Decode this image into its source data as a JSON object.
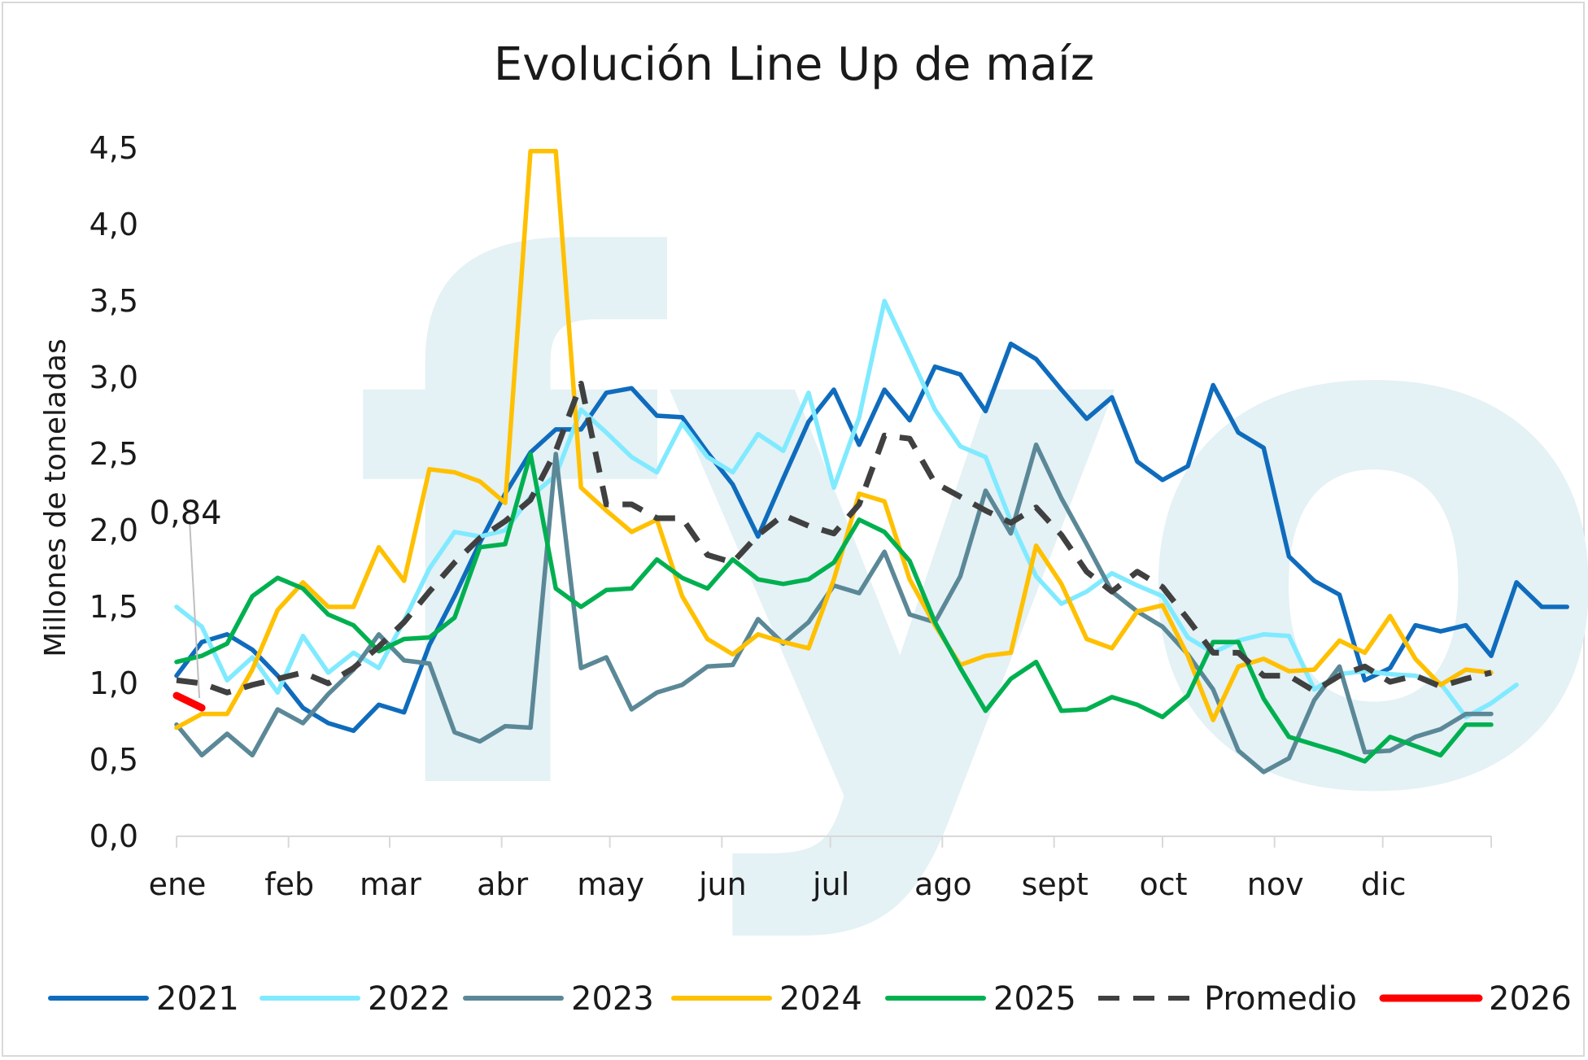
{
  "chart_data": {
    "type": "line",
    "title": "Evolución Line Up de maíz",
    "xlabel": "",
    "ylabel": "Millones de toneladas",
    "ylim": [
      0,
      4.5
    ],
    "yticks": [
      "0,0",
      "0,5",
      "1,0",
      "1,5",
      "2,0",
      "2,5",
      "3,0",
      "3,5",
      "4,0",
      "4,5"
    ],
    "months": [
      "ene",
      "feb",
      "mar",
      "abr",
      "may",
      "jun",
      "jul",
      "ago",
      "sept",
      "oct",
      "nov",
      "dic"
    ],
    "weeks_per_year": 52,
    "watermark": "fyo",
    "callout": {
      "label": "0,84",
      "series": "2026",
      "week": 2
    },
    "series": [
      {
        "name": "2021",
        "color": "#0f6cbd",
        "dash": false,
        "values": [
          1.05,
          1.27,
          1.32,
          1.22,
          1.05,
          0.84,
          0.74,
          0.69,
          0.86,
          0.81,
          1.25,
          1.57,
          1.92,
          2.24,
          2.51,
          2.66,
          2.66,
          2.9,
          2.93,
          2.75,
          2.74,
          2.51,
          2.3,
          1.96,
          2.34,
          2.71,
          2.92,
          2.56,
          2.92,
          2.72,
          3.07,
          3.02,
          2.78,
          3.22,
          3.12,
          2.92,
          2.73,
          2.87,
          2.45,
          2.33,
          2.42,
          2.95,
          2.64,
          2.54,
          1.83,
          1.67,
          1.58,
          1.02,
          1.1,
          1.38,
          1.34,
          1.38,
          1.18,
          1.66,
          1.5,
          1.5
        ]
      },
      {
        "name": "2022",
        "color": "#80eaff",
        "dash": false,
        "values": [
          1.5,
          1.37,
          1.02,
          1.17,
          0.94,
          1.31,
          1.07,
          1.2,
          1.1,
          1.41,
          1.75,
          1.99,
          1.96,
          2.0,
          2.22,
          2.36,
          2.79,
          2.64,
          2.48,
          2.38,
          2.7,
          2.48,
          2.38,
          2.63,
          2.52,
          2.9,
          2.28,
          2.74,
          3.5,
          3.15,
          2.79,
          2.55,
          2.48,
          2.06,
          1.7,
          1.52,
          1.6,
          1.72,
          1.64,
          1.57,
          1.3,
          1.2,
          1.28,
          1.32,
          1.31,
          0.96,
          1.06,
          1.08,
          1.06,
          1.05,
          1.0,
          0.78,
          0.87,
          0.99
        ]
      },
      {
        "name": "2023",
        "color": "#5b8897",
        "dash": false,
        "values": [
          0.73,
          0.53,
          0.67,
          0.53,
          0.83,
          0.74,
          0.93,
          1.09,
          1.32,
          1.15,
          1.13,
          0.68,
          0.62,
          0.72,
          0.71,
          2.5,
          1.1,
          1.17,
          0.83,
          0.94,
          0.99,
          1.11,
          1.12,
          1.42,
          1.26,
          1.4,
          1.64,
          1.59,
          1.86,
          1.45,
          1.4,
          1.7,
          2.26,
          1.98,
          2.56,
          2.21,
          1.91,
          1.6,
          1.47,
          1.37,
          1.19,
          0.96,
          0.56,
          0.42,
          0.51,
          0.89,
          1.11,
          0.55,
          0.56,
          0.65,
          0.7,
          0.8,
          0.8
        ]
      },
      {
        "name": "2024",
        "color": "#ffc000",
        "dash": false,
        "values": [
          0.71,
          0.8,
          0.8,
          1.09,
          1.48,
          1.66,
          1.5,
          1.5,
          1.89,
          1.67,
          2.4,
          2.38,
          2.32,
          2.18,
          4.48,
          4.48,
          2.28,
          2.13,
          1.99,
          2.07,
          1.57,
          1.29,
          1.19,
          1.32,
          1.27,
          1.23,
          1.68,
          2.24,
          2.19,
          1.68,
          1.38,
          1.12,
          1.18,
          1.2,
          1.9,
          1.65,
          1.29,
          1.23,
          1.47,
          1.51,
          1.18,
          0.76,
          1.11,
          1.16,
          1.08,
          1.09,
          1.28,
          1.2,
          1.44,
          1.16,
          0.99,
          1.09,
          1.07
        ]
      },
      {
        "name": "2025",
        "color": "#00b050",
        "dash": false,
        "values": [
          1.14,
          1.18,
          1.26,
          1.57,
          1.69,
          1.62,
          1.45,
          1.38,
          1.21,
          1.29,
          1.3,
          1.43,
          1.89,
          1.91,
          2.5,
          1.62,
          1.5,
          1.61,
          1.62,
          1.81,
          1.69,
          1.62,
          1.81,
          1.68,
          1.65,
          1.68,
          1.79,
          2.07,
          1.99,
          1.8,
          1.4,
          1.1,
          0.82,
          1.03,
          1.14,
          0.82,
          0.83,
          0.91,
          0.86,
          0.78,
          0.92,
          1.27,
          1.27,
          0.9,
          0.65,
          0.6,
          0.55,
          0.49,
          0.65,
          0.59,
          0.53,
          0.73,
          0.73
        ]
      },
      {
        "name": "Promedio",
        "color": "#404040",
        "dash": true,
        "values": [
          1.02,
          1.0,
          0.94,
          0.99,
          1.03,
          1.07,
          1.0,
          1.1,
          1.24,
          1.4,
          1.6,
          1.79,
          1.95,
          2.06,
          2.2,
          2.52,
          2.96,
          2.17,
          2.17,
          2.08,
          2.08,
          1.84,
          1.79,
          1.97,
          2.1,
          2.03,
          1.98,
          2.17,
          2.62,
          2.6,
          2.31,
          2.22,
          2.13,
          2.05,
          2.15,
          1.97,
          1.73,
          1.6,
          1.73,
          1.63,
          1.42,
          1.2,
          1.2,
          1.05,
          1.05,
          0.95,
          1.05,
          1.11,
          1.01,
          1.05,
          0.98,
          1.03,
          1.07
        ]
      },
      {
        "name": "2026",
        "color": "#ff0000",
        "dash": false,
        "values": [
          0.92,
          0.84
        ]
      }
    ]
  }
}
